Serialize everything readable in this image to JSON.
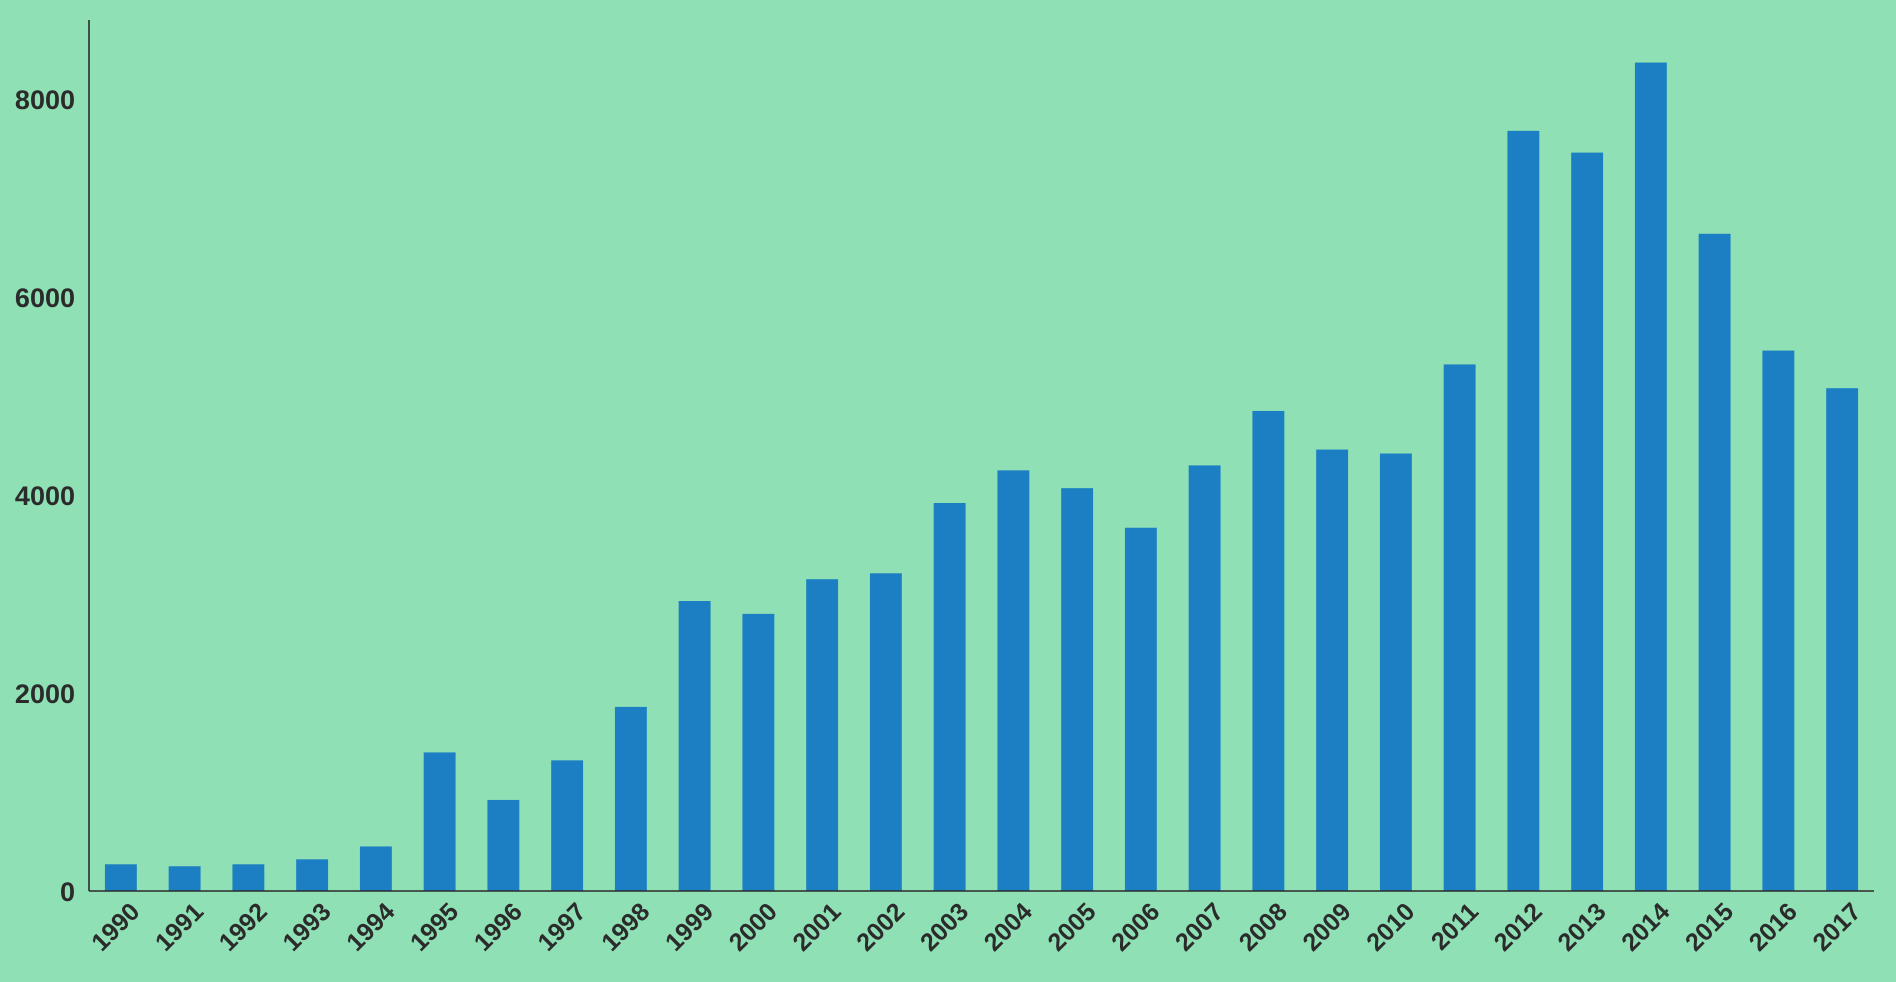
{
  "chart_data": {
    "type": "bar",
    "title": "",
    "xlabel": "",
    "ylabel": "",
    "categories": [
      "1990",
      "1991",
      "1992",
      "1993",
      "1994",
      "1995",
      "1996",
      "1997",
      "1998",
      "1999",
      "2000",
      "2001",
      "2002",
      "2003",
      "2004",
      "2005",
      "2006",
      "2007",
      "2008",
      "2009",
      "2010",
      "2011",
      "2012",
      "2013",
      "2014",
      "2015",
      "2016",
      "2017"
    ],
    "values": [
      270,
      250,
      270,
      320,
      450,
      1400,
      920,
      1320,
      1860,
      2930,
      2800,
      3150,
      3210,
      3920,
      4250,
      4070,
      3670,
      4300,
      4850,
      4460,
      4420,
      5320,
      7680,
      7460,
      8370,
      6640,
      5460,
      5080
    ],
    "yticks": [
      0,
      2000,
      4000,
      6000,
      8000
    ],
    "ylim": [
      0,
      8800
    ],
    "grid": false,
    "legend": "none",
    "bar_color": "#1c7ec3",
    "background_color": "#8fe0b5",
    "axis_color": "#2b2b2b"
  }
}
